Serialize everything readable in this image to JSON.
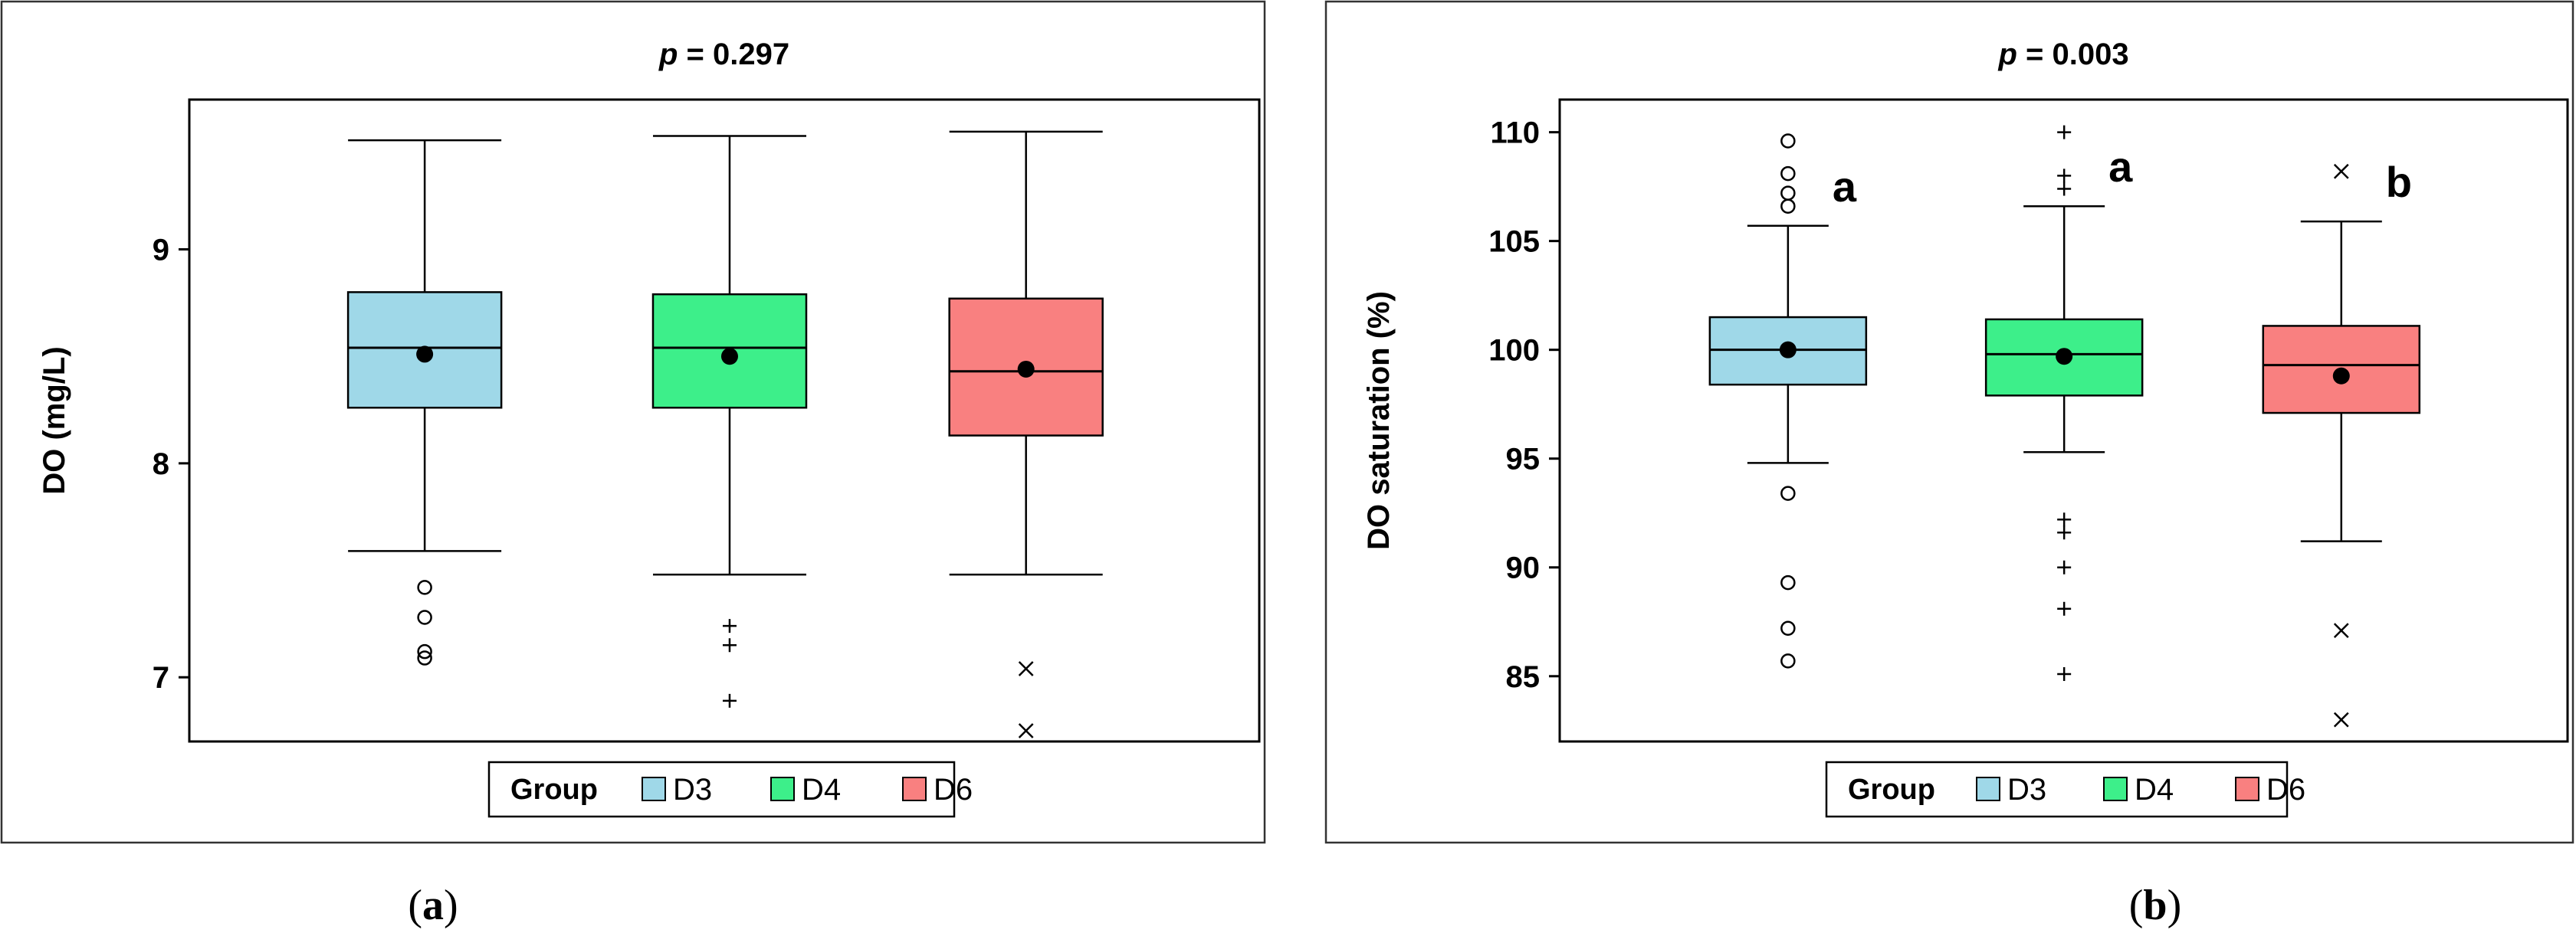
{
  "chart_data": [
    {
      "type": "box",
      "panel_label": "a",
      "title_prefix": "p",
      "title_rest": " = 0.297",
      "ylabel": "DO (mg/L)",
      "ylim": [
        6.7,
        9.7
      ],
      "yticks": [
        7,
        8,
        9
      ],
      "legend_title": "Group",
      "categories": [
        "D3",
        "D4",
        "D6"
      ],
      "series": [
        {
          "name": "D3",
          "color": "#9fd8e8",
          "min": 7.59,
          "q1": 8.26,
          "median": 8.54,
          "q3": 8.8,
          "max": 9.51,
          "mean": 8.51,
          "outlier_marker": "circle",
          "outliers": [
            7.42,
            7.28,
            7.12,
            7.09
          ],
          "letter": ""
        },
        {
          "name": "D4",
          "color": "#3def8a",
          "min": 7.48,
          "q1": 8.26,
          "median": 8.54,
          "q3": 8.79,
          "max": 9.53,
          "mean": 8.5,
          "outlier_marker": "plus",
          "outliers": [
            7.24,
            7.15,
            6.89
          ],
          "letter": ""
        },
        {
          "name": "D6",
          "color": "#f98080",
          "min": 7.48,
          "q1": 8.13,
          "median": 8.43,
          "q3": 8.77,
          "max": 9.55,
          "mean": 8.44,
          "outlier_marker": "cross",
          "outliers": [
            7.04,
            6.75
          ],
          "letter": ""
        }
      ]
    },
    {
      "type": "box",
      "panel_label": "b",
      "title_prefix": "p",
      "title_rest": " = 0.003",
      "ylabel": "DO saturation (%)",
      "ylim": [
        82,
        111.5
      ],
      "yticks": [
        85,
        90,
        95,
        100,
        105,
        110
      ],
      "legend_title": "Group",
      "categories": [
        "D3",
        "D4",
        "D6"
      ],
      "series": [
        {
          "name": "D3",
          "color": "#9fd8e8",
          "min": 94.8,
          "q1": 98.4,
          "median": 100.0,
          "q3": 101.5,
          "max": 105.7,
          "mean": 100.0,
          "outlier_marker": "circle",
          "outliers": [
            109.6,
            108.1,
            107.2,
            106.6,
            93.4,
            89.3,
            87.2,
            85.7
          ],
          "letter": "a"
        },
        {
          "name": "D4",
          "color": "#3def8a",
          "min": 95.3,
          "q1": 97.9,
          "median": 99.8,
          "q3": 101.4,
          "max": 106.6,
          "mean": 99.7,
          "outlier_marker": "plus",
          "outliers": [
            110.0,
            108.0,
            107.4,
            92.2,
            91.6,
            90.0,
            88.1,
            85.1
          ],
          "letter": "a"
        },
        {
          "name": "D6",
          "color": "#f98080",
          "min": 91.2,
          "q1": 97.1,
          "median": 99.3,
          "q3": 101.1,
          "max": 105.9,
          "mean": 98.8,
          "outlier_marker": "cross",
          "outliers": [
            108.2,
            87.1,
            83.0
          ],
          "letter": "b"
        }
      ]
    }
  ]
}
